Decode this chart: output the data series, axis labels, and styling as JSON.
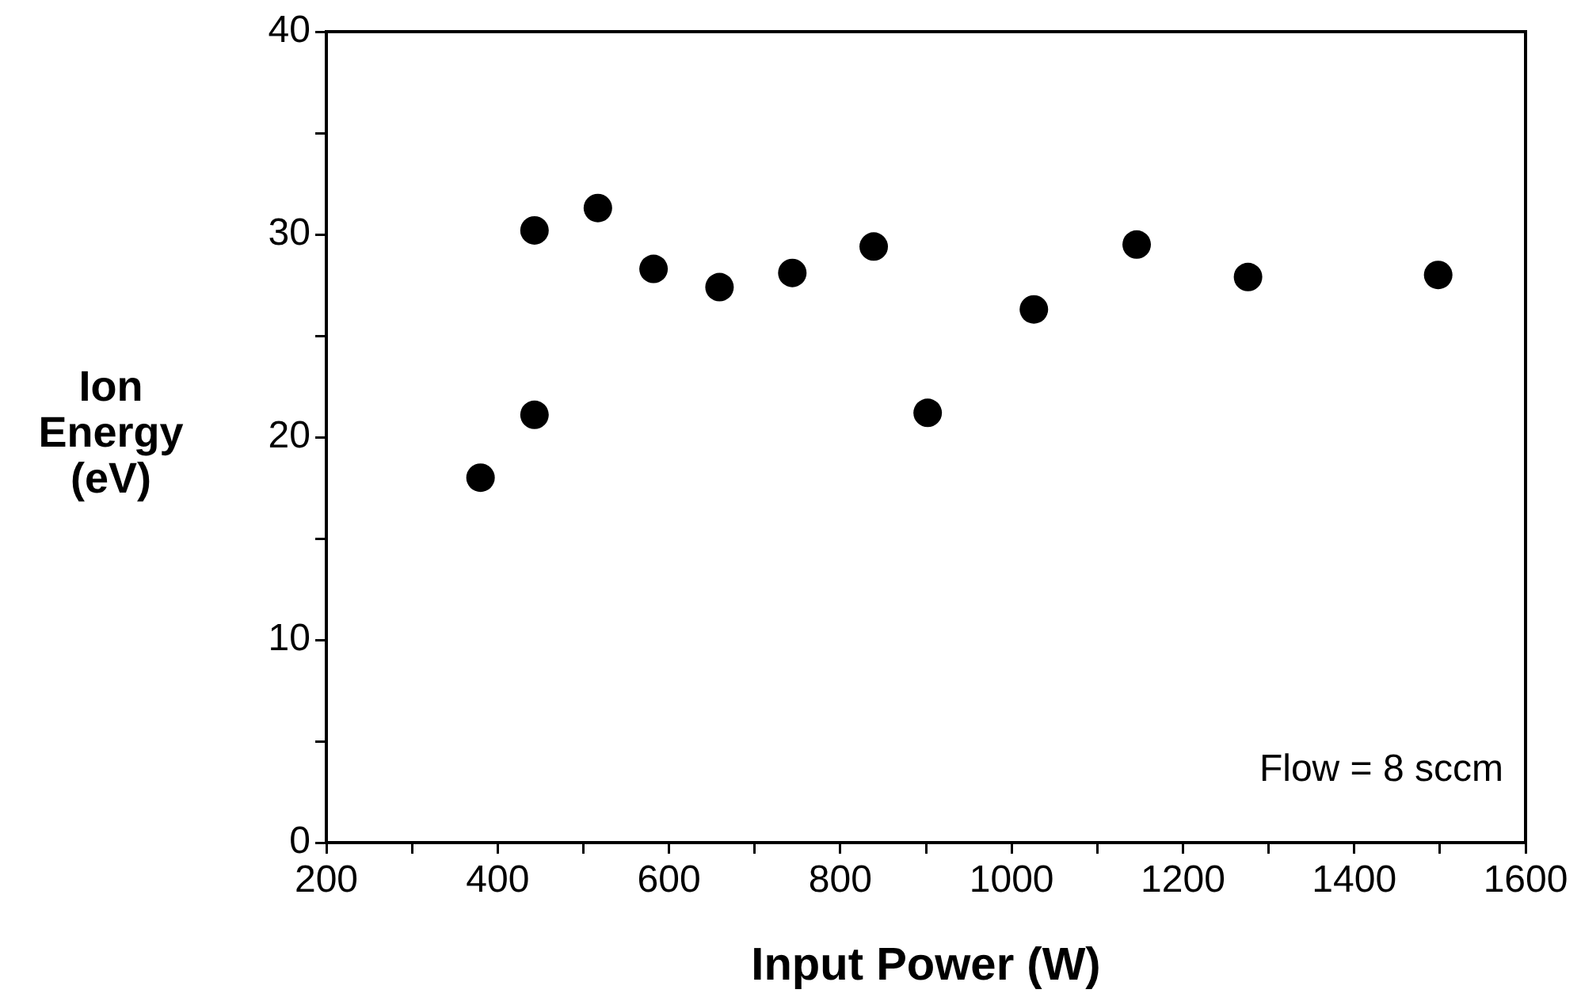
{
  "chart_data": {
    "type": "scatter",
    "xlabel": "Input Power (W)",
    "ylabel": "Ion\nEnergy\n(eV)",
    "x": [
      380,
      443,
      443,
      517,
      582,
      659,
      744,
      839,
      902,
      1026,
      1146,
      1276,
      1498
    ],
    "series": [
      {
        "color": "#000000",
        "values": [
          18.0,
          21.1,
          30.2,
          31.3,
          28.3,
          27.4,
          28.1,
          29.4,
          21.2,
          26.3,
          29.5,
          27.9,
          28.0
        ]
      }
    ],
    "xlim": [
      200,
      1600
    ],
    "xticks": [
      200,
      {
        "value": 300,
        "label": null
      },
      400,
      {
        "value": 500,
        "label": null
      },
      600,
      {
        "value": 700,
        "label": null
      },
      800,
      {
        "value": 900,
        "label": null
      },
      1000,
      {
        "value": 1100,
        "label": null
      },
      1200,
      {
        "value": 1300,
        "label": null
      },
      1400,
      {
        "value": 1500,
        "label": null
      },
      1600
    ],
    "ylim": [
      0,
      40
    ],
    "yticks": [
      0,
      {
        "value": 5,
        "label": null
      },
      10,
      {
        "value": 15,
        "label": null
      },
      20,
      {
        "value": 25,
        "label": null
      },
      30,
      {
        "value": 35,
        "label": null
      },
      40
    ],
    "annotations": [
      "Flow = 8 sccm"
    ],
    "grid": false,
    "legend": false,
    "marker": "circle"
  }
}
